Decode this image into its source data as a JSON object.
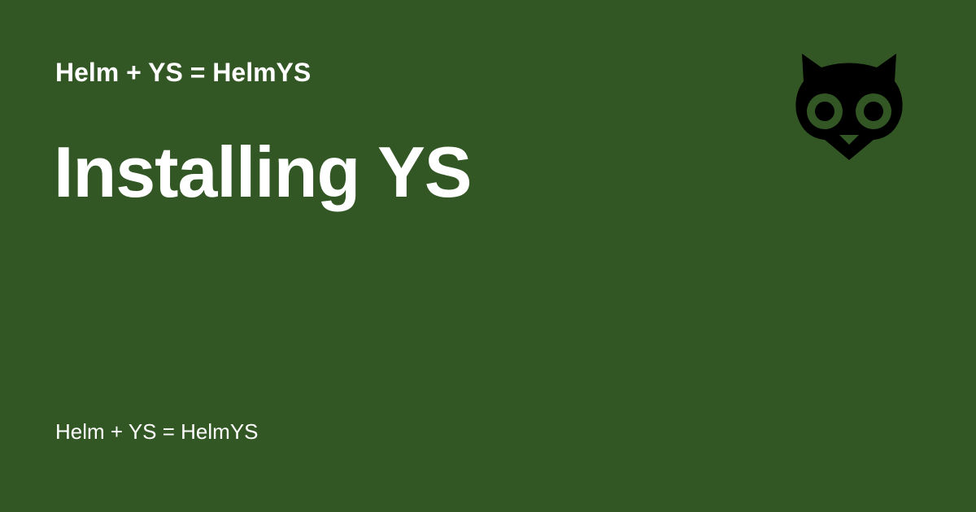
{
  "card": {
    "site_name": "Helm + YS = HelmYS",
    "title": "Installing YS",
    "description": "Helm + YS = HelmYS",
    "logo_icon": "owl-icon"
  },
  "colors": {
    "background": "#335724",
    "text": "#ffffff",
    "logo": "#000000"
  }
}
